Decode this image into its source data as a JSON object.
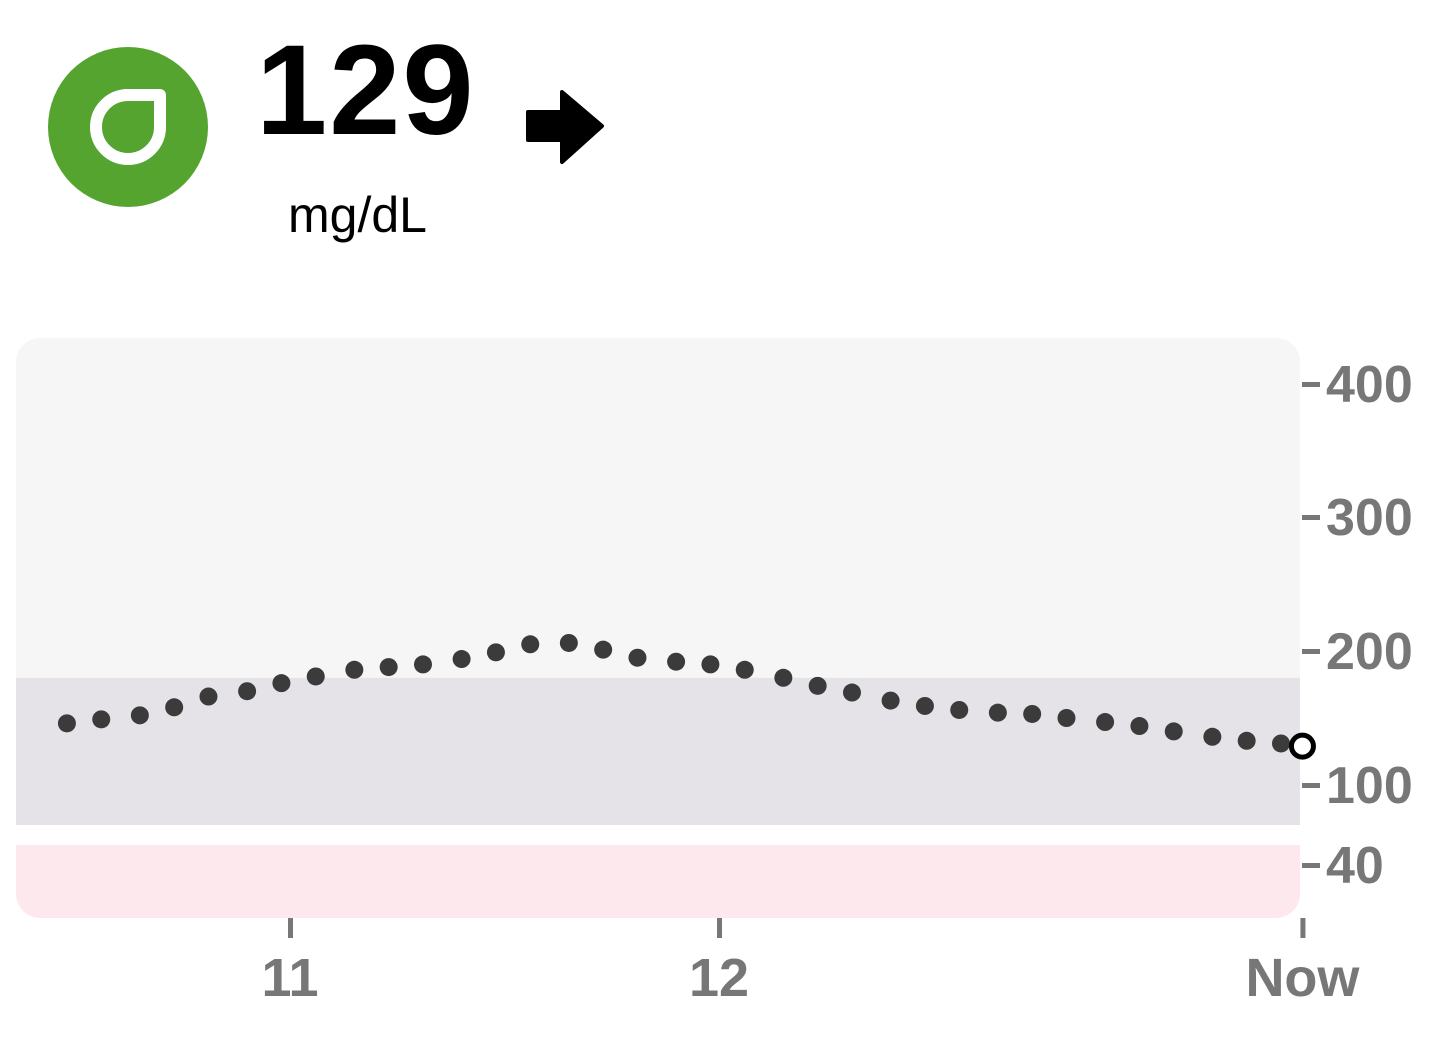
{
  "reading": {
    "value": "129",
    "unit": "mg/dL",
    "trend_icon": "arrow-right-icon",
    "status_icon": "sensor-drop-icon",
    "status_color": "#54a42f"
  },
  "chart_data": {
    "type": "scatter",
    "title": "",
    "xlabel": "",
    "ylabel": "",
    "x_ticks": [
      {
        "label": "11",
        "value": 11.0
      },
      {
        "label": "12",
        "value": 12.0
      },
      {
        "label": "Now",
        "value": 13.36
      }
    ],
    "y_ticks": [
      400,
      300,
      200,
      100,
      40
    ],
    "y_scale": "piecewise-linear",
    "xlim": [
      10.4,
      13.36
    ],
    "target_range": [
      70,
      180
    ],
    "low_threshold": 55,
    "colors": {
      "high_zone": "#f6f6f7",
      "target_zone": "#e5e3e7",
      "low_zone": "#fde9ed",
      "points": "#3b3b3b",
      "ticks": "#777777"
    },
    "series": [
      {
        "x": [
          10.48,
          10.56,
          10.65,
          10.73,
          10.81,
          10.9,
          10.98,
          11.06,
          11.15,
          11.23,
          11.31,
          11.4,
          11.48,
          11.56,
          11.65,
          11.73,
          11.81,
          11.9,
          11.98,
          12.06,
          12.15,
          12.23,
          12.31,
          12.4,
          12.48,
          12.56,
          12.65,
          12.73,
          12.81,
          12.9,
          12.98,
          13.06,
          13.15,
          13.23,
          13.31,
          13.36
        ],
        "y": [
          146,
          149,
          152,
          158,
          166,
          170,
          176,
          181,
          186,
          188,
          190,
          194,
          199,
          205,
          206,
          201,
          195,
          192,
          190,
          186,
          180,
          174,
          169,
          163,
          159,
          156,
          154,
          153,
          150,
          147,
          144,
          140,
          136,
          133,
          131,
          129
        ]
      }
    ]
  }
}
